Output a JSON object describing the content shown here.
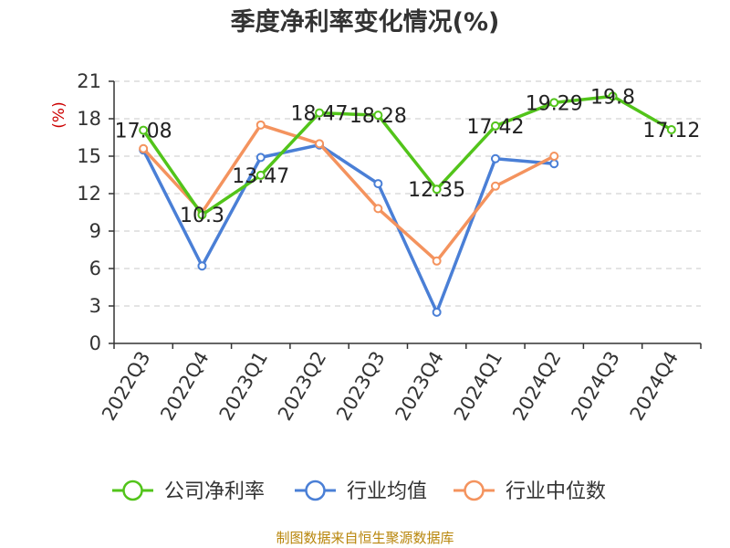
{
  "chart_data": {
    "type": "line",
    "title": "季度净利率变化情况(%)",
    "ylabel": "(%)",
    "xlabel": "",
    "categories": [
      "2022Q3",
      "2022Q4",
      "2023Q1",
      "2023Q2",
      "2023Q3",
      "2023Q4",
      "2024Q1",
      "2024Q2",
      "2024Q3",
      "2024Q4"
    ],
    "ylim": [
      0,
      21
    ],
    "yticks": [
      0,
      3,
      6,
      9,
      12,
      15,
      18,
      21
    ],
    "grid": "horizontal-dashed",
    "legend_position": "bottom",
    "series": [
      {
        "name": "公司净利率",
        "color": "#52c41a",
        "values": [
          17.08,
          10.3,
          13.47,
          18.47,
          18.28,
          12.35,
          17.42,
          19.29,
          19.8,
          17.12
        ],
        "labels": [
          "17.08",
          "10.3",
          "13.47",
          "18.47",
          "18.28",
          "12.35",
          "17.42",
          "19.29",
          "19.8",
          "17.12"
        ]
      },
      {
        "name": "行业均值",
        "color": "#4a7fd6",
        "values": [
          15.5,
          6.2,
          14.9,
          15.9,
          12.8,
          2.5,
          14.8,
          14.4,
          null,
          null
        ]
      },
      {
        "name": "行业中位数",
        "color": "#f4935e",
        "values": [
          15.6,
          10.5,
          17.5,
          16.0,
          10.8,
          6.6,
          12.6,
          15.0,
          null,
          null
        ]
      }
    ]
  },
  "source_text": "制图数据来自恒生聚源数据库"
}
